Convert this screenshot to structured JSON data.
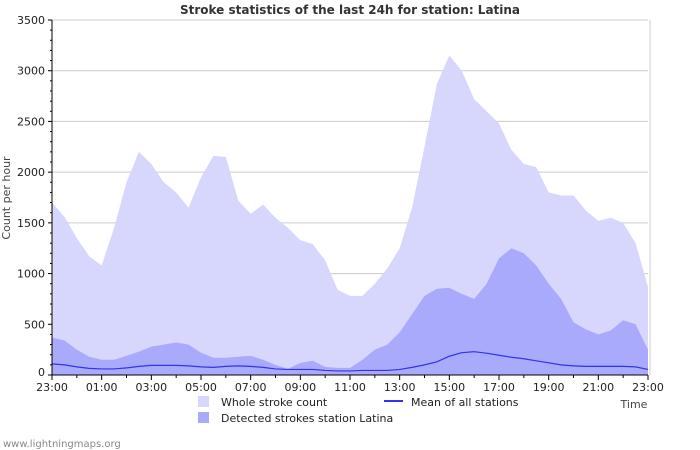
{
  "chart_data": {
    "type": "area",
    "title": "Stroke statistics of the last 24h for station: Latina",
    "xlabel": "Time",
    "ylabel": "Count per hour",
    "ylim": [
      0,
      3500
    ],
    "yticks": [
      0,
      500,
      1000,
      1500,
      2000,
      2500,
      3000,
      3500
    ],
    "xticks": [
      "23:00",
      "01:00",
      "03:00",
      "05:00",
      "07:00",
      "09:00",
      "11:00",
      "13:00",
      "15:00",
      "17:00",
      "19:00",
      "21:00",
      "23:00"
    ],
    "x_hours_from_start": [
      0,
      0.5,
      1,
      1.5,
      2,
      2.5,
      3,
      3.5,
      4,
      4.5,
      5,
      5.5,
      6,
      6.5,
      7,
      7.5,
      8,
      8.5,
      9,
      9.5,
      10,
      10.5,
      11,
      11.5,
      12,
      12.5,
      13,
      13.5,
      14,
      14.5,
      15,
      15.5,
      16,
      16.5,
      17,
      17.5,
      18,
      18.5,
      19,
      19.5,
      20,
      20.5,
      21,
      21.5,
      22,
      22.5,
      23,
      23.5,
      24
    ],
    "grid": true,
    "legend_placement": "bottom",
    "series": [
      {
        "name": "Whole stroke count",
        "kind": "area",
        "color": "#d7d7fd",
        "values": [
          1700,
          1560,
          1350,
          1170,
          1080,
          1450,
          1900,
          2200,
          2080,
          1900,
          1800,
          1650,
          1950,
          2160,
          2150,
          1720,
          1590,
          1680,
          1550,
          1450,
          1330,
          1290,
          1130,
          840,
          780,
          780,
          900,
          1050,
          1250,
          1650,
          2250,
          2870,
          3150,
          3000,
          2720,
          2600,
          2480,
          2220,
          2080,
          2050,
          1800,
          1770,
          1770,
          1620,
          1520,
          1550,
          1500,
          1300,
          870
        ]
      },
      {
        "name": "Detected strokes station Latina",
        "kind": "area",
        "color": "#aaaafc",
        "values": [
          370,
          340,
          250,
          180,
          150,
          150,
          190,
          230,
          280,
          300,
          320,
          300,
          220,
          170,
          170,
          180,
          190,
          150,
          100,
          60,
          120,
          140,
          80,
          70,
          70,
          150,
          250,
          300,
          420,
          600,
          780,
          850,
          860,
          800,
          750,
          900,
          1150,
          1250,
          1200,
          1080,
          900,
          750,
          520,
          450,
          400,
          440,
          540,
          500,
          250
        ]
      },
      {
        "name": "Mean of all stations",
        "kind": "line",
        "color": "#3333ee",
        "values": [
          110,
          100,
          80,
          65,
          60,
          60,
          70,
          85,
          95,
          95,
          95,
          90,
          80,
          75,
          85,
          90,
          85,
          75,
          60,
          55,
          55,
          55,
          45,
          40,
          40,
          45,
          45,
          45,
          55,
          75,
          100,
          130,
          185,
          220,
          230,
          215,
          195,
          175,
          160,
          140,
          120,
          100,
          90,
          85,
          85,
          85,
          85,
          80,
          55
        ]
      }
    ]
  },
  "watermark": "www.lightningmaps.org"
}
